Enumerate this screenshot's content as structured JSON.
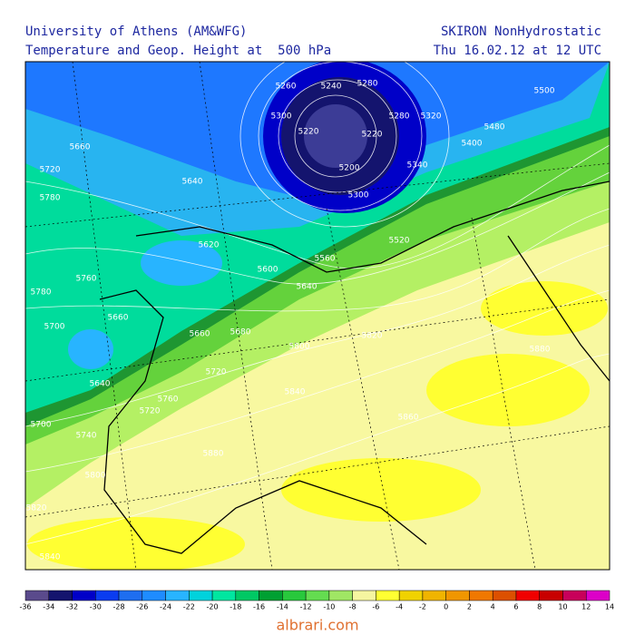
{
  "header": {
    "left_line1": "University of Athens (AM&WFG)",
    "right_line1": "SKIRON NonHydrostatic",
    "left_line2": "Temperature and Geop. Height at  500 hPa",
    "right_line2": "Thu 16.02.12 at 12 UTC"
  },
  "contour_labels": [
    "5240",
    "5280",
    "5260",
    "5220",
    "5200",
    "5220",
    "5280",
    "5320",
    "5300",
    "5340",
    "5300",
    "5400",
    "5480",
    "5500",
    "5660",
    "5720",
    "5780",
    "5640",
    "5620",
    "5600",
    "5560",
    "5640",
    "5520",
    "5780",
    "5760",
    "5700",
    "5660",
    "5640",
    "5660",
    "5680",
    "5720",
    "5700",
    "5740",
    "5760",
    "5720",
    "5800",
    "5840",
    "5820",
    "5860",
    "5880",
    "5880",
    "5820",
    "5800",
    "5840"
  ],
  "colorbar": {
    "ticks": [
      "-36",
      "-34",
      "-32",
      "-30",
      "-28",
      "-26",
      "-24",
      "-22",
      "-20",
      "-18",
      "-16",
      "-14",
      "-12",
      "-10",
      "-8",
      "-6",
      "-4",
      "-2",
      "0",
      "2",
      "4",
      "6",
      "8",
      "10",
      "12",
      "14"
    ],
    "colors": [
      "#5a4a8c",
      "#14146e",
      "#0000c8",
      "#0a3cf0",
      "#1e6ef0",
      "#1e8cff",
      "#28b4ff",
      "#00d2dc",
      "#00e6a0",
      "#00c864",
      "#00a032",
      "#28c83c",
      "#64dc50",
      "#a0e664",
      "#f5f5a0",
      "#ffff32",
      "#f0d200",
      "#f0b400",
      "#f09600",
      "#f07800",
      "#dc5000",
      "#f00000",
      "#c80000",
      "#c8005a",
      "#dc00c8"
    ]
  },
  "footer": "albrari.com"
}
